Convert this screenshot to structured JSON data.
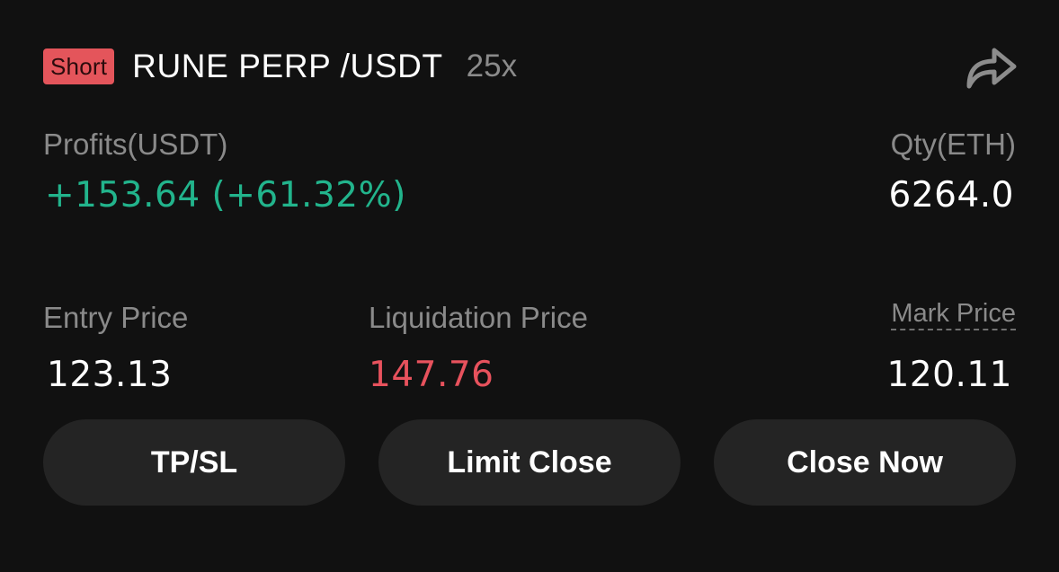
{
  "header": {
    "side": "Short",
    "pair": "RUNE PERP /USDT",
    "leverage": "25x",
    "share_icon": "share-arrow-icon"
  },
  "colors": {
    "background": "#111111",
    "short_badge": "#e4555b",
    "profit_green": "#22b48c",
    "liquidation_red": "#e8525d",
    "button_bg": "#242424"
  },
  "position": {
    "profits_label": "Profits(USDT)",
    "profits_value": "+153.64 (+61.32%)",
    "qty_label": "Qty(ETH)",
    "qty_value": "6264.0",
    "entry_price_label": "Entry Price",
    "entry_price_value": "123.13",
    "liquidation_price_label": "Liquidation Price",
    "liquidation_price_value": "147.76",
    "mark_price_label": "Mark Price",
    "mark_price_value": "120.11"
  },
  "actions": {
    "tpsl": "TP/SL",
    "limit_close": "Limit Close",
    "close_now": "Close Now"
  }
}
